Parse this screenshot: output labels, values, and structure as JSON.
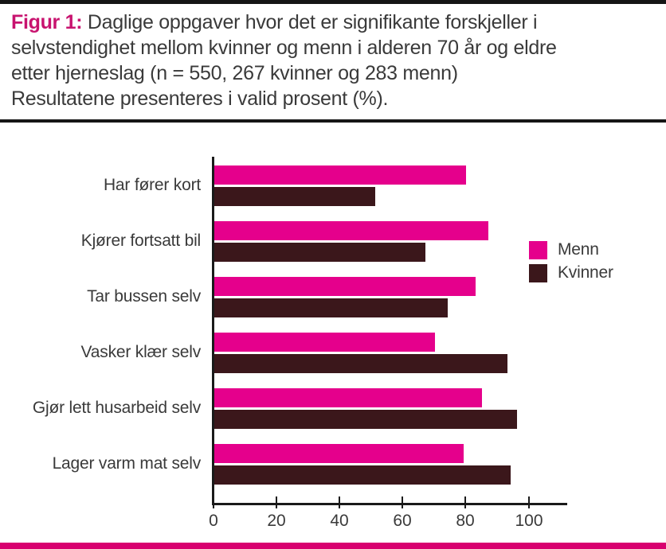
{
  "figure": {
    "label": "Figur 1:",
    "title_lines": [
      "Daglige oppgaver hvor det er signifikante forskjeller i",
      "selvstendighet mellom kvinner og menn i alderen 70 år og eldre",
      "etter hjerneslag (n = 550, 267 kvinner og 283 menn)",
      "Resultatene presenteres i valid prosent (%)."
    ]
  },
  "colors": {
    "menn": "#e5008c",
    "kvinner": "#3b171b",
    "figur_label": "#c8136f",
    "bottom_strip": "#d8006f",
    "rule": "#151515",
    "text": "#3a3a3a"
  },
  "chart_data": {
    "type": "bar",
    "orientation": "horizontal",
    "title": "Figur 1: Daglige oppgaver hvor det er signifikante forskjeller i selvstendighet mellom kvinner og menn i alderen 70 år og eldre etter hjerneslag (n = 550, 267 kvinner og 283 menn) Resultatene presenteres i valid prosent (%).",
    "categories": [
      "Har fører kort",
      "Kjører fortsatt bil",
      "Tar bussen selv",
      "Vasker klær selv",
      "Gjør lett husarbeid selv",
      "Lager varm mat selv"
    ],
    "series": [
      {
        "name": "Menn",
        "color": "#e5008c",
        "values": [
          80,
          87,
          83,
          70,
          85,
          79
        ]
      },
      {
        "name": "Kvinner",
        "color": "#3b171b",
        "values": [
          51,
          67,
          74,
          93,
          96,
          94
        ]
      }
    ],
    "xlabel": "",
    "ylabel": "",
    "x_ticks": [
      0,
      20,
      40,
      60,
      80,
      100
    ],
    "xlim": [
      0,
      112
    ],
    "grid": false,
    "legend_position": "right",
    "value_unit": "valid prosent (%)"
  }
}
